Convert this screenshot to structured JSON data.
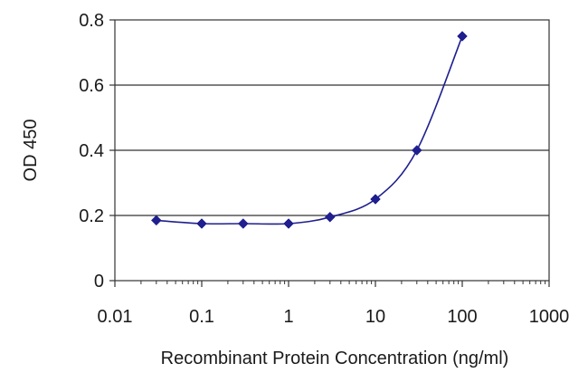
{
  "chart_data": {
    "type": "line",
    "title": "",
    "xlabel": "Recombinant Protein Concentration (ng/ml)",
    "ylabel": "OD 450",
    "xscale": "log",
    "xlim": [
      0.01,
      1000
    ],
    "ylim": [
      0,
      0.8
    ],
    "xticks": [
      {
        "value": 0.01,
        "label": "0.01"
      },
      {
        "value": 0.1,
        "label": "0.1"
      },
      {
        "value": 1,
        "label": "1"
      },
      {
        "value": 10,
        "label": "10"
      },
      {
        "value": 100,
        "label": "100"
      },
      {
        "value": 1000,
        "label": "1000"
      }
    ],
    "yticks": [
      {
        "value": 0,
        "label": "0"
      },
      {
        "value": 0.2,
        "label": "0.2"
      },
      {
        "value": 0.4,
        "label": "0.4"
      },
      {
        "value": 0.6,
        "label": "0.6"
      },
      {
        "value": 0.8,
        "label": "0.8"
      }
    ],
    "grid": "horizontal",
    "color": "#1f1f8f",
    "series": [
      {
        "x": [
          0.03,
          0.1,
          0.3,
          1,
          3,
          10,
          30,
          100
        ],
        "y": [
          0.185,
          0.175,
          0.175,
          0.175,
          0.195,
          0.25,
          0.4,
          0.75
        ]
      }
    ]
  }
}
